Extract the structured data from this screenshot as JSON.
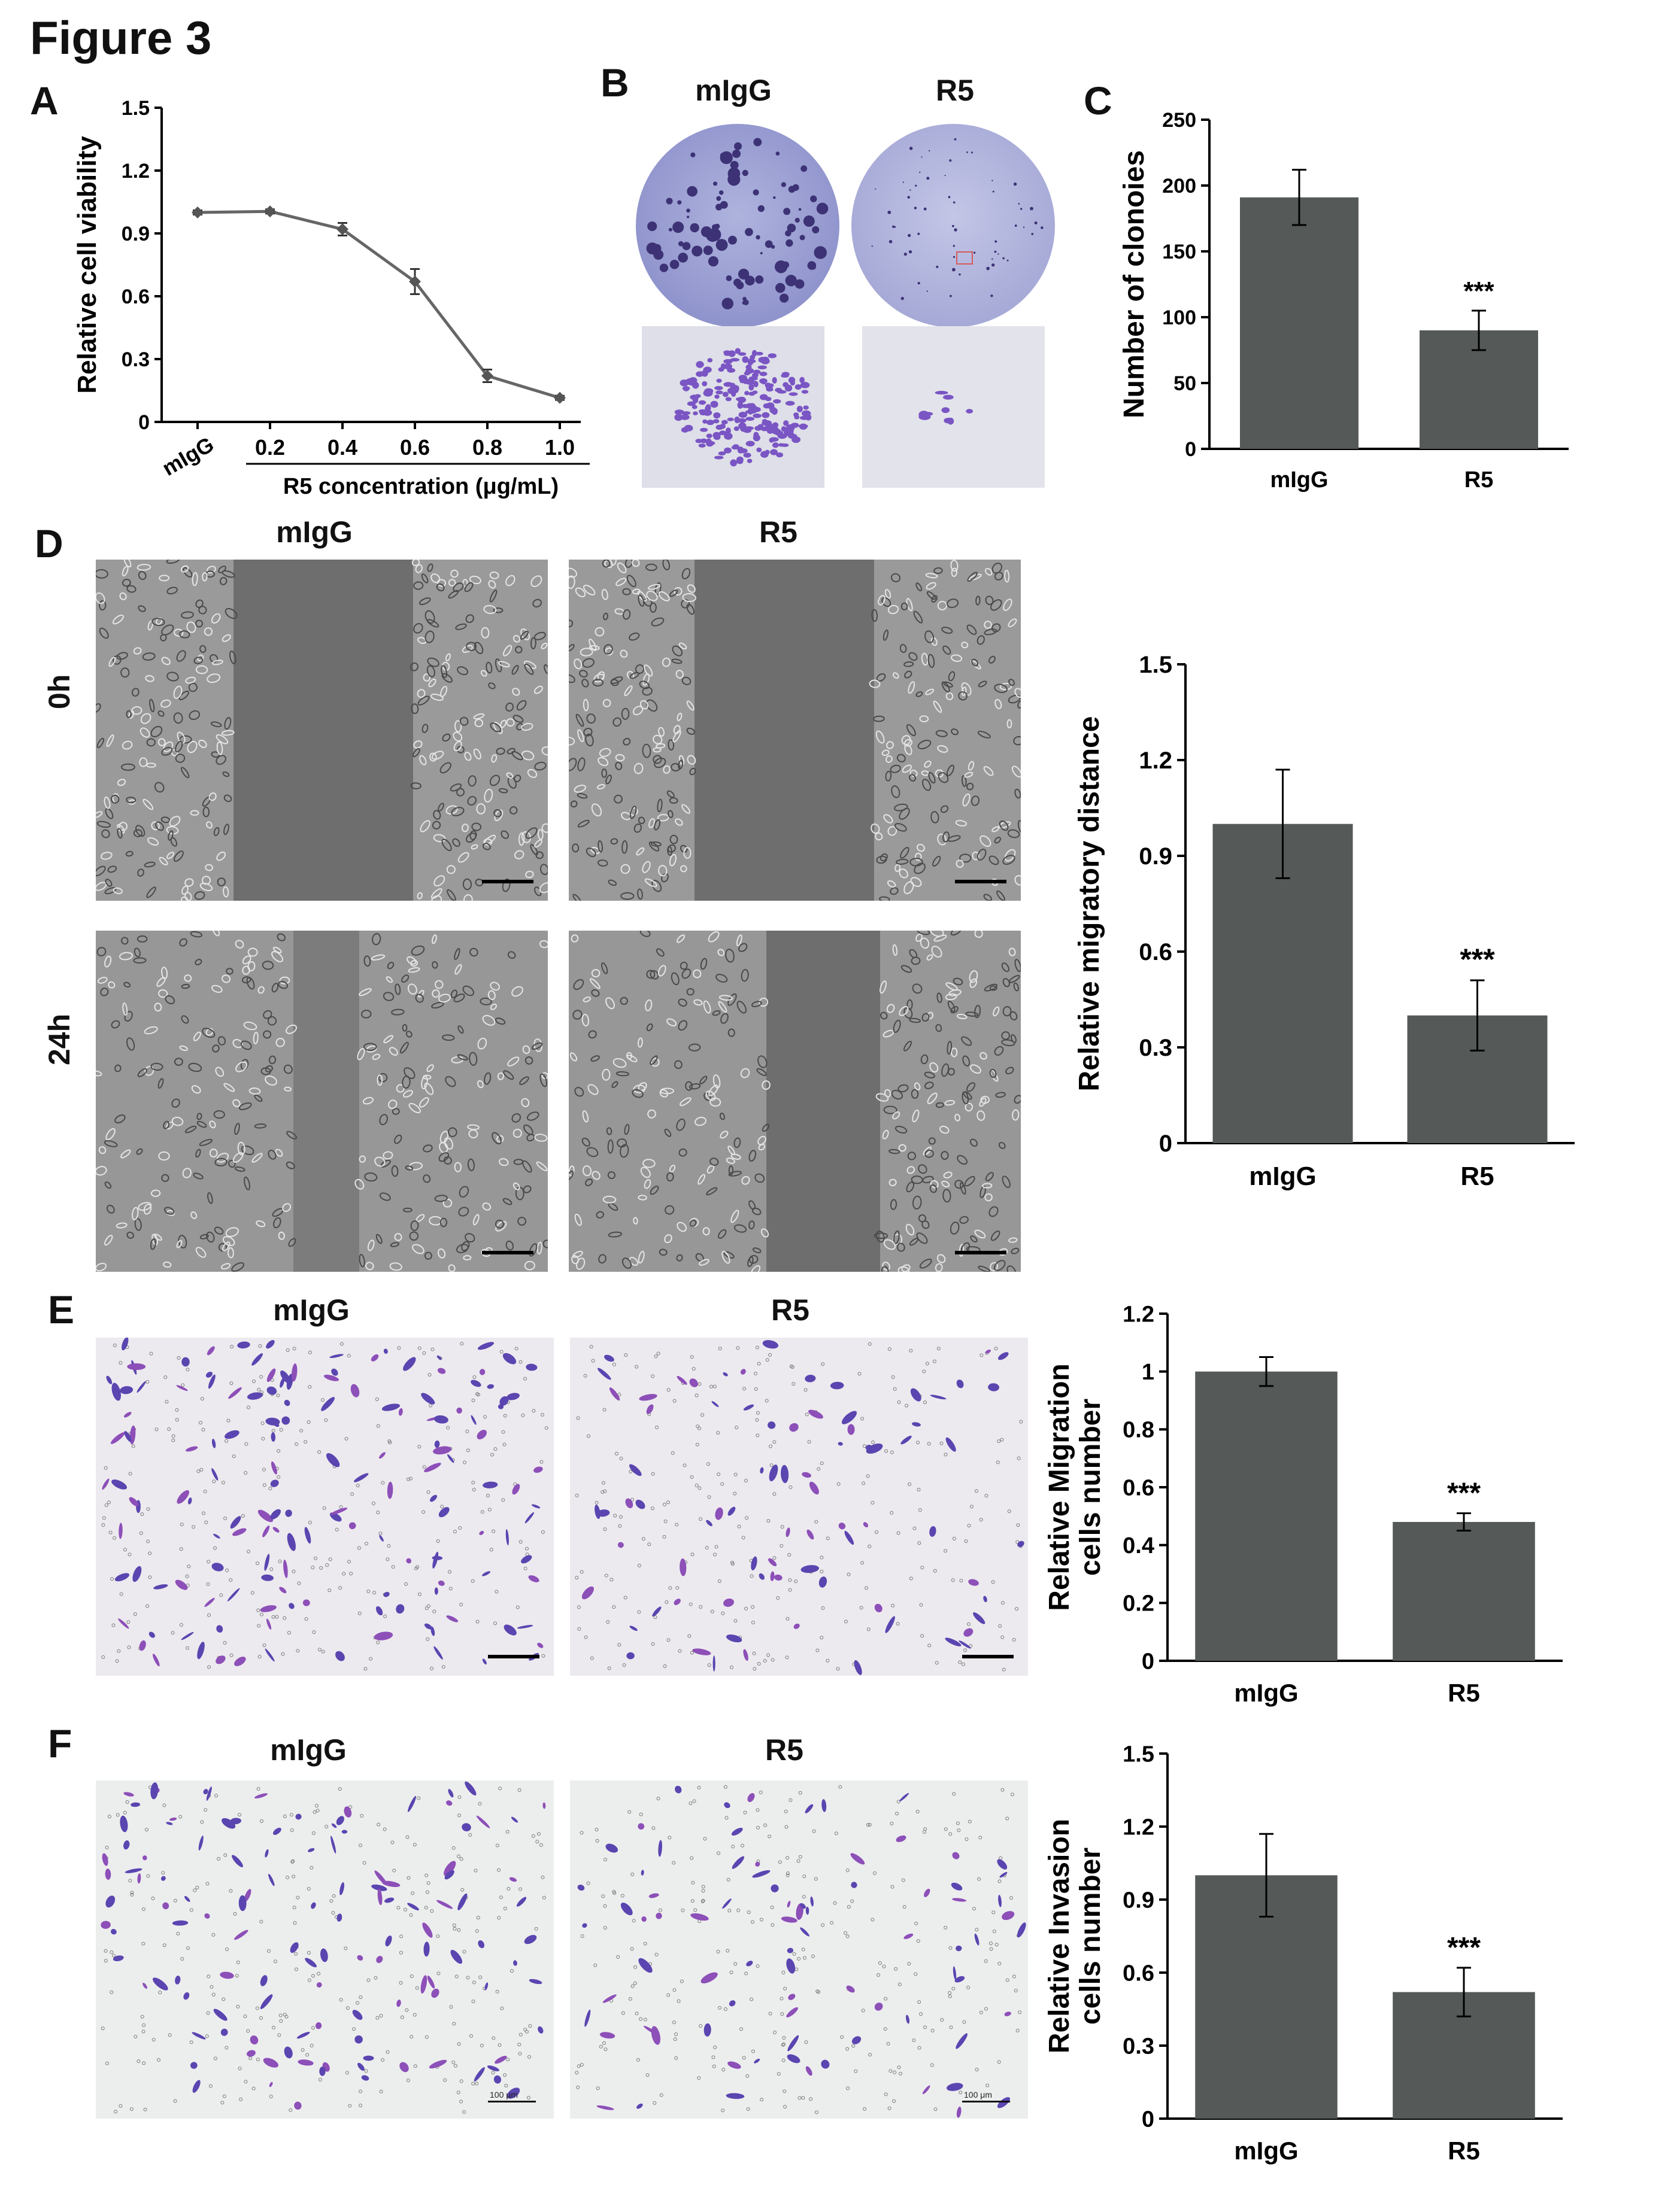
{
  "figure_title": "Figure 3",
  "panels": {
    "A": "A",
    "B": "B",
    "C": "C",
    "D": "D",
    "E": "E",
    "F": "F"
  },
  "panel_b": {
    "left_label": "mIgG",
    "right_label": "R5"
  },
  "panel_d": {
    "left_label": "mIgG",
    "right_label": "R5",
    "row_0h": "0h",
    "row_24h": "24h"
  },
  "panel_e": {
    "left_label": "mIgG",
    "right_label": "R5"
  },
  "panel_f": {
    "left_label": "mIgG",
    "right_label": "R5",
    "scale_left": "100 μm",
    "scale_right": "100 μm"
  },
  "colors": {
    "bar": "#555a59",
    "line": "#666666",
    "stain_violet": "#6d4fb5",
    "phase_gray": "#6f6f6f"
  },
  "chart_data": [
    {
      "panel": "A",
      "type": "line",
      "categories": [
        "mIgG",
        "0.2",
        "0.4",
        "0.6",
        "0.8",
        "1.0"
      ],
      "values": [
        1.0,
        1.005,
        0.92,
        0.67,
        0.22,
        0.115
      ],
      "errors": [
        0.01,
        0.01,
        0.03,
        0.06,
        0.03,
        0.01
      ],
      "xlabel": "R5 concentration (μg/mL)",
      "ylabel": "Relative cell viability",
      "ylim": [
        0,
        1.5
      ],
      "yticks": [
        "0",
        "0.3",
        "0.6",
        "0.9",
        "1.2",
        "1.5"
      ]
    },
    {
      "panel": "C",
      "type": "bar",
      "categories": [
        "mIgG",
        "R5"
      ],
      "values": [
        191,
        90
      ],
      "errors": [
        21,
        15
      ],
      "annotations": [
        "",
        "***"
      ],
      "ylabel": "Number of clonoies",
      "ylim": [
        0,
        250
      ],
      "yticks": [
        "0",
        "50",
        "100",
        "150",
        "200",
        "250"
      ]
    },
    {
      "panel": "D",
      "type": "bar",
      "categories": [
        "mIgG",
        "R5"
      ],
      "values": [
        1.0,
        0.4
      ],
      "errors": [
        0.17,
        0.11
      ],
      "annotations": [
        "",
        "***"
      ],
      "ylabel": "Relative migratory distance",
      "ylim": [
        0,
        1.5
      ],
      "yticks": [
        "0",
        "0.3",
        "0.6",
        "0.9",
        "1.2",
        "1.5"
      ]
    },
    {
      "panel": "E",
      "type": "bar",
      "categories": [
        "mIgG",
        "R5"
      ],
      "values": [
        1.0,
        0.48
      ],
      "errors": [
        0.05,
        0.03
      ],
      "annotations": [
        "",
        "***"
      ],
      "ylabel": "Relative Migration\ncells number",
      "ylim": [
        0,
        1.2
      ],
      "yticks": [
        "0",
        "0.2",
        "0.4",
        "0.6",
        "0.8",
        "1",
        "1.2"
      ]
    },
    {
      "panel": "F",
      "type": "bar",
      "categories": [
        "mIgG",
        "R5"
      ],
      "values": [
        1.0,
        0.52
      ],
      "errors": [
        0.17,
        0.1
      ],
      "annotations": [
        "",
        "***"
      ],
      "ylabel": "Relative Invasion\ncells number",
      "ylim": [
        0,
        1.5
      ],
      "yticks": [
        "0",
        "0.3",
        "0.6",
        "0.9",
        "1.2",
        "1.5"
      ]
    }
  ]
}
